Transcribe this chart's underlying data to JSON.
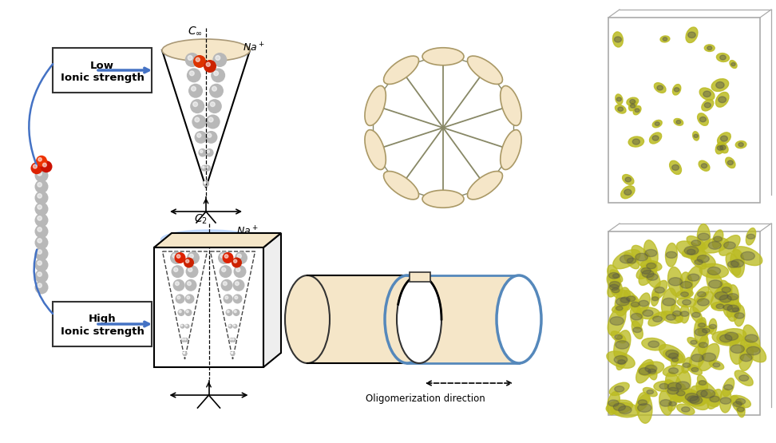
{
  "fig_width": 9.72,
  "fig_height": 5.55,
  "bg_color": "#ffffff",
  "label_low": "Low\nIonic strength",
  "label_high": "High\nIonic strength",
  "arrow_color": "#4472c4",
  "glow_color": "#aaccff",
  "tan_color": "#f5e6c8",
  "blue_cylinder_color": "#5588bb",
  "red_bead_color": "#cc2200",
  "gray_bead_color": "#b8b8b8",
  "yellow_blob_color": "#bbbb22",
  "dark_blob_color": "#555544",
  "oligo_label": "Oligomerization direction"
}
